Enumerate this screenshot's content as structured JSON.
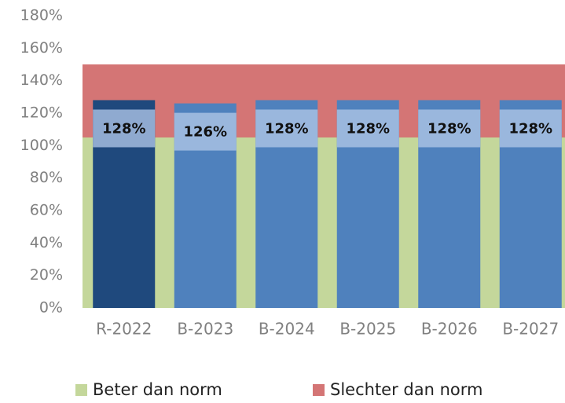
{
  "chart_data": {
    "type": "bar",
    "categories": [
      "R-2022",
      "B-2023",
      "B-2024",
      "B-2025",
      "B-2026",
      "B-2027"
    ],
    "values": [
      128,
      126,
      128,
      128,
      128,
      128
    ],
    "value_labels": [
      "128%",
      "126%",
      "128%",
      "128%",
      "128%",
      "128%"
    ],
    "colors": [
      "#1f497d",
      "#4f81bd",
      "#4f81bd",
      "#4f81bd",
      "#4f81bd",
      "#4f81bd"
    ],
    "bands": [
      {
        "name": "Beter dan norm",
        "color": "#c4d79b",
        "value": 105
      },
      {
        "name": "Slechter dan norm",
        "color": "#d47575",
        "value": 45
      }
    ],
    "ylim": [
      0,
      180
    ],
    "yticks": [
      {
        "value": 0,
        "label": "0%"
      },
      {
        "value": 20,
        "label": "20%"
      },
      {
        "value": 40,
        "label": "40%"
      },
      {
        "value": 60,
        "label": "60%"
      },
      {
        "value": 80,
        "label": "80%"
      },
      {
        "value": 100,
        "label": "100%"
      },
      {
        "value": 120,
        "label": "120%"
      },
      {
        "value": 140,
        "label": "140%"
      },
      {
        "value": 160,
        "label": "160%"
      },
      {
        "value": 180,
        "label": "180%"
      }
    ],
    "legend": "bottom"
  }
}
